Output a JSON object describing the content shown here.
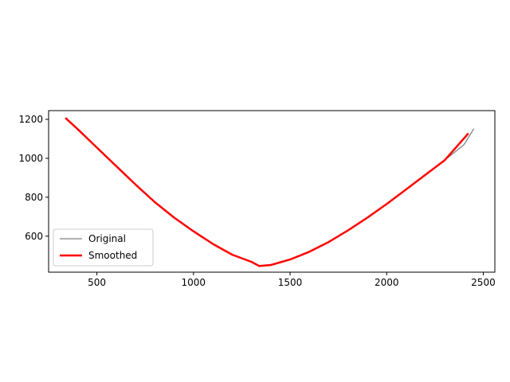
{
  "chart_data": {
    "type": "line",
    "title": "",
    "xlabel": "",
    "ylabel": "",
    "xlim": [
      250,
      2560
    ],
    "ylim": [
      415,
      1245
    ],
    "x_ticks": [
      500,
      1000,
      1500,
      2000,
      2500
    ],
    "y_ticks": [
      600,
      800,
      1000,
      1200
    ],
    "grid": false,
    "legend_position": "lower left",
    "series": [
      {
        "name": "Original",
        "color": "#808080",
        "line_width": "thin",
        "x": [
          340,
          400,
          500,
          600,
          700,
          800,
          900,
          1000,
          1100,
          1200,
          1300,
          1340,
          1400,
          1500,
          1600,
          1700,
          1800,
          1900,
          2000,
          2100,
          2200,
          2300,
          2400,
          2450
        ],
        "y": [
          1205,
          1150,
          1055,
          960,
          865,
          775,
          695,
          625,
          560,
          505,
          468,
          447,
          452,
          480,
          520,
          570,
          630,
          695,
          765,
          840,
          915,
          990,
          1070,
          1150
        ]
      },
      {
        "name": "Smoothed",
        "color": "#ff0000",
        "line_width": "thick",
        "x": [
          340,
          400,
          500,
          600,
          700,
          800,
          900,
          1000,
          1100,
          1200,
          1300,
          1340,
          1400,
          1500,
          1600,
          1700,
          1800,
          1900,
          2000,
          2100,
          2200,
          2300,
          2420
        ],
        "y": [
          1205,
          1150,
          1055,
          960,
          865,
          775,
          695,
          625,
          560,
          505,
          468,
          447,
          452,
          480,
          520,
          570,
          630,
          695,
          765,
          840,
          915,
          990,
          1125
        ]
      }
    ]
  }
}
